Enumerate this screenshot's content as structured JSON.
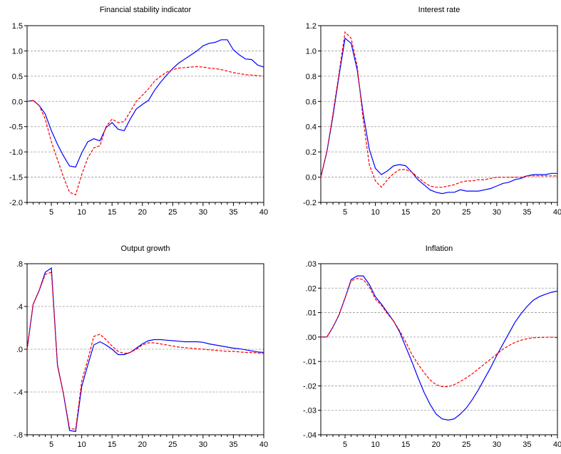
{
  "chart_data": [
    {
      "type": "line",
      "title": "Financial stability indicator",
      "xlim": [
        1,
        40
      ],
      "ylim": [
        -2.0,
        1.5
      ],
      "xticks": [
        5,
        10,
        15,
        20,
        25,
        30,
        35,
        40
      ],
      "yticks": [
        1.5,
        1.0,
        0.5,
        0.0,
        -0.5,
        -1.0,
        -1.5,
        -2.0
      ],
      "ytick_labels": [
        "1.5",
        "1.0",
        "0.5",
        "0.0",
        "-0.5",
        "-1.0",
        "-1.5",
        "-2.0"
      ],
      "grid": "horizontal dashed",
      "series": [
        {
          "color": "#0000ff",
          "style": "solid",
          "x": [
            1,
            2,
            3,
            4,
            5,
            6,
            7,
            8,
            9,
            10,
            11,
            12,
            13,
            14,
            15,
            16,
            17,
            18,
            19,
            20,
            21,
            22,
            23,
            24,
            25,
            26,
            27,
            28,
            29,
            30,
            31,
            32,
            33,
            34,
            35,
            36,
            37,
            38,
            39,
            40
          ],
          "values": [
            0.0,
            0.02,
            -0.08,
            -0.25,
            -0.58,
            -0.85,
            -1.08,
            -1.28,
            -1.3,
            -1.02,
            -0.8,
            -0.74,
            -0.78,
            -0.52,
            -0.42,
            -0.55,
            -0.58,
            -0.35,
            -0.15,
            -0.06,
            0.02,
            0.22,
            0.38,
            0.52,
            0.65,
            0.76,
            0.84,
            0.92,
            1.0,
            1.1,
            1.15,
            1.17,
            1.22,
            1.22,
            1.02,
            0.92,
            0.84,
            0.83,
            0.72,
            0.68
          ]
        },
        {
          "color": "#ff0000",
          "style": "dashed",
          "x": [
            1,
            2,
            3,
            4,
            5,
            6,
            7,
            8,
            9,
            10,
            11,
            12,
            13,
            14,
            15,
            16,
            17,
            18,
            19,
            20,
            21,
            22,
            23,
            24,
            25,
            26,
            27,
            28,
            29,
            30,
            31,
            32,
            33,
            34,
            35,
            36,
            37,
            38,
            39,
            40
          ],
          "values": [
            0.0,
            0.02,
            -0.08,
            -0.35,
            -0.8,
            -1.15,
            -1.5,
            -1.8,
            -1.85,
            -1.45,
            -1.12,
            -0.92,
            -0.88,
            -0.5,
            -0.35,
            -0.42,
            -0.4,
            -0.2,
            0.0,
            0.12,
            0.25,
            0.4,
            0.5,
            0.58,
            0.63,
            0.66,
            0.67,
            0.68,
            0.69,
            0.68,
            0.66,
            0.65,
            0.63,
            0.6,
            0.57,
            0.55,
            0.53,
            0.52,
            0.51,
            0.5
          ]
        }
      ]
    },
    {
      "type": "line",
      "title": "Interest rate",
      "xlim": [
        1,
        40
      ],
      "ylim": [
        -0.2,
        1.2
      ],
      "xticks": [
        5,
        10,
        15,
        20,
        25,
        30,
        35,
        40
      ],
      "yticks": [
        1.2,
        1.0,
        0.8,
        0.6,
        0.4,
        0.2,
        0.0,
        -0.2
      ],
      "ytick_labels": [
        "1.2",
        "1.0",
        "0.8",
        "0.6",
        "0.4",
        "0.2",
        "0.0",
        "-0.2"
      ],
      "grid": "horizontal dashed",
      "series": [
        {
          "color": "#0000ff",
          "style": "solid",
          "x": [
            1,
            2,
            3,
            4,
            5,
            6,
            7,
            8,
            9,
            10,
            11,
            12,
            13,
            14,
            15,
            16,
            17,
            18,
            19,
            20,
            21,
            22,
            23,
            24,
            25,
            26,
            27,
            28,
            29,
            30,
            31,
            32,
            33,
            34,
            35,
            36,
            37,
            38,
            39,
            40
          ],
          "values": [
            0.0,
            0.2,
            0.48,
            0.8,
            1.1,
            1.06,
            0.85,
            0.5,
            0.22,
            0.07,
            0.02,
            0.05,
            0.09,
            0.1,
            0.09,
            0.04,
            -0.02,
            -0.06,
            -0.1,
            -0.12,
            -0.13,
            -0.12,
            -0.12,
            -0.1,
            -0.11,
            -0.11,
            -0.11,
            -0.1,
            -0.09,
            -0.07,
            -0.05,
            -0.04,
            -0.02,
            -0.01,
            0.01,
            0.02,
            0.02,
            0.02,
            0.03,
            0.03
          ]
        },
        {
          "color": "#ff0000",
          "style": "dashed",
          "x": [
            1,
            2,
            3,
            4,
            5,
            6,
            7,
            8,
            9,
            10,
            11,
            12,
            13,
            14,
            15,
            16,
            17,
            18,
            19,
            20,
            21,
            22,
            23,
            24,
            25,
            26,
            27,
            28,
            29,
            30,
            31,
            32,
            33,
            34,
            35,
            36,
            37,
            38,
            39,
            40
          ],
          "values": [
            0.0,
            0.2,
            0.5,
            0.82,
            1.15,
            1.1,
            0.88,
            0.45,
            0.1,
            -0.03,
            -0.08,
            -0.02,
            0.03,
            0.06,
            0.06,
            0.04,
            0.0,
            -0.04,
            -0.07,
            -0.08,
            -0.08,
            -0.07,
            -0.06,
            -0.04,
            -0.03,
            -0.03,
            -0.02,
            -0.02,
            -0.01,
            0.0,
            0.0,
            0.0,
            0.0,
            0.0,
            0.01,
            0.01,
            0.01,
            0.01,
            0.01,
            0.01
          ]
        }
      ]
    },
    {
      "type": "line",
      "title": "Output growth",
      "xlim": [
        1,
        40
      ],
      "ylim": [
        -0.8,
        0.8
      ],
      "xticks": [
        5,
        10,
        15,
        20,
        25,
        30,
        35,
        40
      ],
      "yticks": [
        0.8,
        0.4,
        0.0,
        -0.4,
        -0.8
      ],
      "ytick_labels": [
        ".8",
        ".4",
        ".0",
        "-.4",
        "-.8"
      ],
      "grid": "horizontal dashed",
      "series": [
        {
          "color": "#0000ff",
          "style": "solid",
          "x": [
            1,
            2,
            3,
            4,
            5,
            6,
            7,
            8,
            9,
            10,
            11,
            12,
            13,
            14,
            15,
            16,
            17,
            18,
            19,
            20,
            21,
            22,
            23,
            24,
            25,
            26,
            27,
            28,
            29,
            30,
            31,
            32,
            33,
            34,
            35,
            36,
            37,
            38,
            39,
            40
          ],
          "values": [
            0.0,
            0.42,
            0.55,
            0.72,
            0.76,
            -0.15,
            -0.42,
            -0.76,
            -0.77,
            -0.35,
            -0.15,
            0.04,
            0.07,
            0.04,
            0.0,
            -0.05,
            -0.05,
            -0.03,
            0.01,
            0.05,
            0.08,
            0.09,
            0.09,
            0.085,
            0.08,
            0.075,
            0.07,
            0.07,
            0.07,
            0.065,
            0.05,
            0.04,
            0.03,
            0.02,
            0.01,
            0.005,
            -0.005,
            -0.015,
            -0.025,
            -0.03
          ]
        },
        {
          "color": "#ff0000",
          "style": "dashed",
          "x": [
            1,
            2,
            3,
            4,
            5,
            6,
            7,
            8,
            9,
            10,
            11,
            12,
            13,
            14,
            15,
            16,
            17,
            18,
            19,
            20,
            21,
            22,
            23,
            24,
            25,
            26,
            27,
            28,
            29,
            30,
            31,
            32,
            33,
            34,
            35,
            36,
            37,
            38,
            39,
            40
          ],
          "values": [
            0.0,
            0.42,
            0.55,
            0.7,
            0.72,
            -0.14,
            -0.42,
            -0.74,
            -0.75,
            -0.3,
            -0.1,
            0.12,
            0.14,
            0.09,
            0.03,
            -0.02,
            -0.04,
            -0.03,
            0.0,
            0.04,
            0.06,
            0.06,
            0.05,
            0.04,
            0.03,
            0.02,
            0.015,
            0.01,
            0.005,
            0.0,
            -0.005,
            -0.01,
            -0.015,
            -0.02,
            -0.02,
            -0.025,
            -0.03,
            -0.03,
            -0.035,
            -0.04
          ]
        }
      ]
    },
    {
      "type": "line",
      "title": "Inflation",
      "xlim": [
        1,
        40
      ],
      "ylim": [
        -0.04,
        0.03
      ],
      "xticks": [
        5,
        10,
        15,
        20,
        25,
        30,
        35,
        40
      ],
      "yticks": [
        0.03,
        0.02,
        0.01,
        0.0,
        -0.01,
        -0.02,
        -0.03,
        -0.04
      ],
      "ytick_labels": [
        ".03",
        ".02",
        ".01",
        ".00",
        "-.01",
        "-.02",
        "-.03",
        "-.04"
      ],
      "grid": "horizontal dashed",
      "series": [
        {
          "color": "#0000ff",
          "style": "solid",
          "x": [
            1,
            2,
            3,
            4,
            5,
            6,
            7,
            8,
            9,
            10,
            11,
            12,
            13,
            14,
            15,
            16,
            17,
            18,
            19,
            20,
            21,
            22,
            23,
            24,
            25,
            26,
            27,
            28,
            29,
            30,
            31,
            32,
            33,
            34,
            35,
            36,
            37,
            38,
            39,
            40
          ],
          "values": [
            0.0,
            0.0,
            0.004,
            0.009,
            0.016,
            0.0235,
            0.025,
            0.025,
            0.0215,
            0.0165,
            0.0135,
            0.01,
            0.0065,
            0.002,
            -0.004,
            -0.01,
            -0.0165,
            -0.0225,
            -0.0275,
            -0.0315,
            -0.0335,
            -0.034,
            -0.0335,
            -0.0315,
            -0.029,
            -0.0255,
            -0.0215,
            -0.017,
            -0.0125,
            -0.0075,
            -0.003,
            0.0015,
            0.006,
            0.0095,
            0.0125,
            0.015,
            0.0165,
            0.0175,
            0.0183,
            0.0188
          ]
        },
        {
          "color": "#ff0000",
          "style": "dashed",
          "x": [
            1,
            2,
            3,
            4,
            5,
            6,
            7,
            8,
            9,
            10,
            11,
            12,
            13,
            14,
            15,
            16,
            17,
            18,
            19,
            20,
            21,
            22,
            23,
            24,
            25,
            26,
            27,
            28,
            29,
            30,
            31,
            32,
            33,
            34,
            35,
            36,
            37,
            38,
            39,
            40
          ],
          "values": [
            0.0,
            0.0,
            0.004,
            0.009,
            0.016,
            0.023,
            0.024,
            0.0235,
            0.0205,
            0.0155,
            0.013,
            0.0095,
            0.0065,
            0.0025,
            -0.002,
            -0.007,
            -0.011,
            -0.0145,
            -0.0175,
            -0.0195,
            -0.0203,
            -0.0203,
            -0.0195,
            -0.0182,
            -0.0167,
            -0.015,
            -0.013,
            -0.011,
            -0.009,
            -0.007,
            -0.005,
            -0.0035,
            -0.0022,
            -0.0013,
            -0.0007,
            -0.0003,
            -0.0002,
            -0.0001,
            -0.0001,
            -0.0002
          ]
        }
      ]
    }
  ]
}
